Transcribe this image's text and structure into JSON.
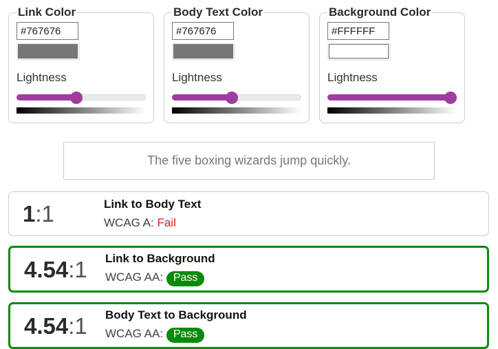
{
  "panels": [
    {
      "legend": "Link Color",
      "hex": "#767676",
      "lightness_label": "Lightness",
      "lightness_pct": 46
    },
    {
      "legend": "Body Text Color",
      "hex": "#767676",
      "lightness_label": "Lightness",
      "lightness_pct": 46
    },
    {
      "legend": "Background Color",
      "hex": "#FFFFFF",
      "lightness_label": "Lightness",
      "lightness_pct": 100
    }
  ],
  "preview": {
    "text": "The five boxing wizards jump quickly."
  },
  "results": [
    {
      "ratio": "1",
      "suffix": ":1",
      "title": "Link to Body Text",
      "wcag_label": "WCAG A:",
      "verdict": "Fail",
      "status": "fail"
    },
    {
      "ratio": "4.54",
      "suffix": ":1",
      "title": "Link to Background",
      "wcag_label": "WCAG AA:",
      "verdict": "Pass",
      "status": "pass"
    },
    {
      "ratio": "4.54",
      "suffix": ":1",
      "title": "Body Text to Background",
      "wcag_label": "WCAG AA:",
      "verdict": "Pass",
      "status": "pass"
    }
  ],
  "colors": {
    "accent_purple": "#a03ca0",
    "pass_green": "#0a8a0a",
    "fail_red": "#d32222",
    "link": "#767676",
    "body_text": "#767676",
    "background": "#FFFFFF"
  }
}
